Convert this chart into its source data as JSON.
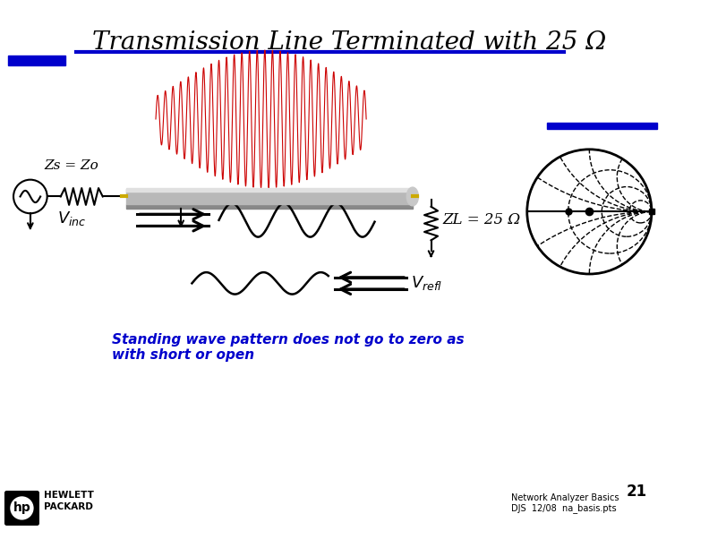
{
  "title": "Transmission Line Terminated with 25 Ω",
  "title_fontsize": 20,
  "bg_color": "#ffffff",
  "blue_line_color": "#0000cc",
  "title_color": "#000000",
  "zs_label": "Zs = Zo",
  "zl_label": "ZL = 25 Ω",
  "standing_wave_text1": "Standing wave pattern does not go to zero as",
  "standing_wave_text2": "with short or open",
  "text_color_blue": "#0000cc",
  "footer_text1": "Network Analyzer Basics",
  "footer_text2": "DJS  12/08  na_basis.pts",
  "page_number": "21",
  "wave_color_red": "#cc0000"
}
